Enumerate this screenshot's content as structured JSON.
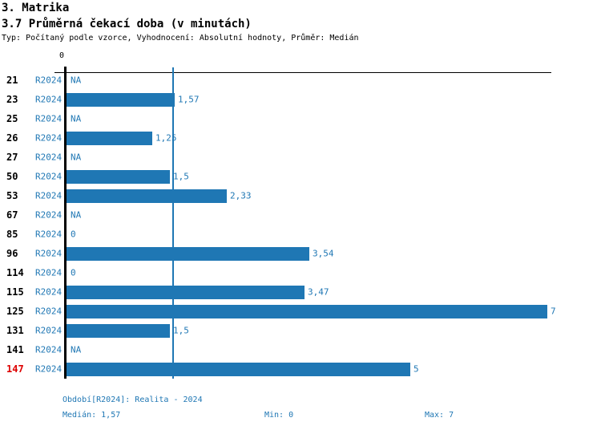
{
  "header": {
    "section_title": "3. Matrika",
    "chart_title": "3.7 Průměrná čekací doba (v minutách)",
    "subtitle": "Typ: Počítaný podle vzorce, Vyhodnocení: Absolutní hodnoty, Průměr: Medián"
  },
  "chart_data": {
    "type": "bar",
    "orientation": "horizontal",
    "series_label": "R2024",
    "categories": [
      "21",
      "23",
      "25",
      "26",
      "27",
      "50",
      "53",
      "67",
      "85",
      "96",
      "114",
      "115",
      "125",
      "131",
      "141",
      "147"
    ],
    "values": [
      null,
      1.57,
      null,
      1.25,
      null,
      1.5,
      2.33,
      null,
      0,
      3.54,
      0,
      3.47,
      7,
      1.5,
      null,
      5
    ],
    "value_labels": [
      "NA",
      "1,57",
      "NA",
      "1,25",
      "NA",
      "1,5",
      "2,33",
      "NA",
      "0",
      "3,54",
      "0",
      "3,47",
      "7",
      "1,5",
      "NA",
      "5"
    ],
    "highlighted_categories": [
      "147"
    ],
    "axis": {
      "tick_label": "0",
      "min": 0,
      "max": 7,
      "median_line_value": 1.57
    },
    "legend_position": "none",
    "grid": false,
    "colors": {
      "bar": "#1f77b4",
      "text_blue": "#1f77b4",
      "highlight_red": "#dd0000",
      "axis_black": "#000000"
    }
  },
  "footer": {
    "period": "Období[R2024]: Realita - 2024",
    "median": "Medián: 1,57",
    "min": "Min: 0",
    "max": "Max: 7"
  }
}
